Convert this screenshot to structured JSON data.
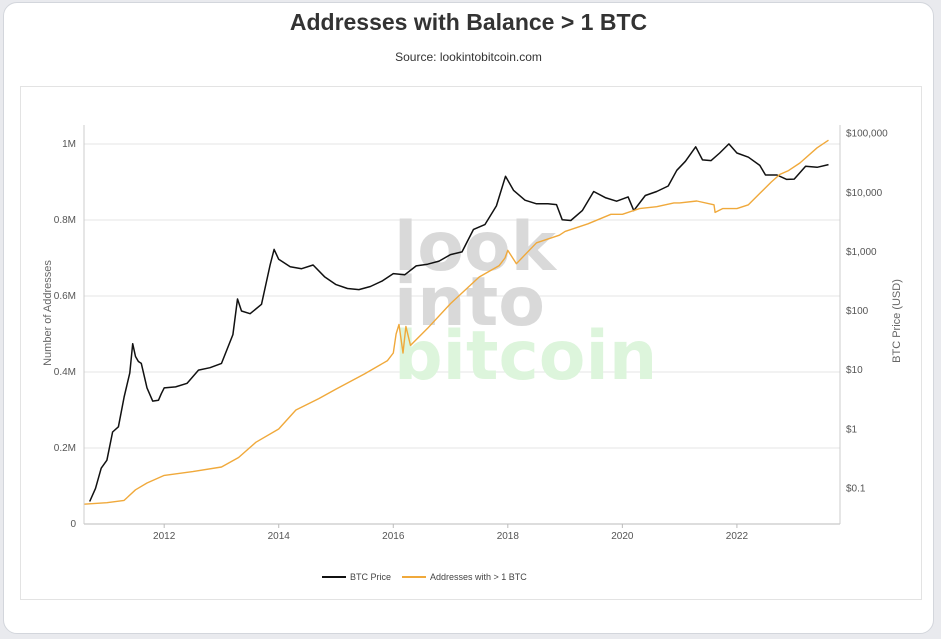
{
  "header": {
    "title": "Addresses with Balance > 1 BTC",
    "source": "Source: lookintobitcoin.com"
  },
  "watermark": {
    "line1": "look",
    "line2": "into",
    "line3": "bitcoin"
  },
  "colors": {
    "btc_price": "#111111",
    "addresses": "#f0a93b",
    "grid": "#e6e6e6",
    "watermark_gray": "#d9d9d9",
    "watermark_green": "#ddf5dc"
  },
  "chart_data": {
    "type": "line",
    "title": "Addresses with Balance > 1 BTC",
    "subtitle": "Source: lookintobitcoin.com",
    "ylabel_left": "Number of Addresses",
    "ylabel_right": "BTC Price (USD)",
    "x_ticks": [
      "2012",
      "2014",
      "2016",
      "2018",
      "2020",
      "2022"
    ],
    "xlim": [
      2010.6,
      2023.8
    ],
    "y_left_ticks": [
      {
        "v": 0,
        "label": "0"
      },
      {
        "v": 200000,
        "label": "0.2M"
      },
      {
        "v": 400000,
        "label": "0.4M"
      },
      {
        "v": 600000,
        "label": "0.6M"
      },
      {
        "v": 800000,
        "label": "0.8M"
      },
      {
        "v": 1000000,
        "label": "1M"
      }
    ],
    "y_left_lim": [
      0,
      1050000
    ],
    "y_right_scale": "log",
    "y_right_ticks": [
      {
        "v": 0.1,
        "label": "$0.1"
      },
      {
        "v": 1,
        "label": "$1"
      },
      {
        "v": 10,
        "label": "$10"
      },
      {
        "v": 100,
        "label": "$100"
      },
      {
        "v": 1000,
        "label": "$1,000"
      },
      {
        "v": 10000,
        "label": "$10,000"
      },
      {
        "v": 100000,
        "label": "$100,000"
      }
    ],
    "y_right_lim": [
      0.025,
      140000
    ],
    "grid": true,
    "legend_position": "bottom",
    "series": [
      {
        "name": "BTC Price",
        "axis": "right",
        "x": [
          2010.7,
          2010.8,
          2010.9,
          2011.0,
          2011.1,
          2011.2,
          2011.3,
          2011.4,
          2011.45,
          2011.5,
          2011.55,
          2011.6,
          2011.7,
          2011.8,
          2011.9,
          2011.95,
          2012.0,
          2012.2,
          2012.4,
          2012.6,
          2012.8,
          2013.0,
          2013.2,
          2013.28,
          2013.35,
          2013.5,
          2013.7,
          2013.85,
          2013.92,
          2014.0,
          2014.2,
          2014.4,
          2014.6,
          2014.8,
          2015.0,
          2015.2,
          2015.4,
          2015.6,
          2015.8,
          2016.0,
          2016.2,
          2016.4,
          2016.6,
          2016.8,
          2017.0,
          2017.2,
          2017.4,
          2017.6,
          2017.8,
          2017.96,
          2018.1,
          2018.3,
          2018.5,
          2018.7,
          2018.85,
          2018.95,
          2019.1,
          2019.3,
          2019.5,
          2019.7,
          2019.9,
          2020.1,
          2020.2,
          2020.4,
          2020.6,
          2020.8,
          2020.95,
          2021.1,
          2021.28,
          2021.4,
          2021.55,
          2021.7,
          2021.86,
          2022.0,
          2022.2,
          2022.4,
          2022.5,
          2022.7,
          2022.87,
          2023.0,
          2023.2,
          2023.4,
          2023.6
        ],
        "values": [
          0.06,
          0.1,
          0.22,
          0.3,
          0.9,
          1.1,
          3.5,
          9,
          28,
          17,
          14,
          13,
          5,
          3,
          3.1,
          4,
          5,
          5.2,
          6,
          10,
          11,
          13,
          40,
          160,
          100,
          90,
          130,
          600,
          1100,
          750,
          560,
          520,
          600,
          380,
          280,
          240,
          230,
          260,
          320,
          430,
          410,
          580,
          620,
          700,
          900,
          1000,
          2400,
          2900,
          6000,
          19000,
          11000,
          7500,
          6500,
          6500,
          6300,
          3500,
          3400,
          5000,
          10500,
          8300,
          7200,
          8500,
          5000,
          9000,
          10500,
          13000,
          24000,
          34000,
          60000,
          36000,
          35000,
          47000,
          67000,
          47000,
          40000,
          29000,
          20000,
          20000,
          16800,
          17000,
          28000,
          27000,
          30000
        ]
      },
      {
        "name": "Addresses with > 1 BTC",
        "axis": "left",
        "x": [
          2010.6,
          2011.0,
          2011.3,
          2011.5,
          2011.7,
          2012.0,
          2012.5,
          2013.0,
          2013.3,
          2013.6,
          2014.0,
          2014.3,
          2014.7,
          2015.0,
          2015.5,
          2015.9,
          2016.0,
          2016.05,
          2016.1,
          2016.17,
          2016.22,
          2016.3,
          2016.6,
          2017.0,
          2017.5,
          2017.85,
          2017.95,
          2018.0,
          2018.15,
          2018.5,
          2018.9,
          2019.0,
          2019.4,
          2019.8,
          2020.0,
          2020.3,
          2020.6,
          2020.9,
          2021.0,
          2021.3,
          2021.6,
          2021.62,
          2021.75,
          2022.0,
          2022.2,
          2022.4,
          2022.6,
          2022.75,
          2022.9,
          2023.1,
          2023.4,
          2023.6
        ],
        "values": [
          52000,
          56000,
          62000,
          90000,
          108000,
          128000,
          138000,
          150000,
          175000,
          215000,
          250000,
          300000,
          330000,
          355000,
          395000,
          430000,
          450000,
          500000,
          525000,
          450000,
          520000,
          470000,
          515000,
          580000,
          650000,
          680000,
          700000,
          720000,
          685000,
          740000,
          760000,
          770000,
          790000,
          815000,
          815000,
          830000,
          835000,
          845000,
          845000,
          850000,
          840000,
          820000,
          830000,
          830000,
          840000,
          870000,
          900000,
          920000,
          930000,
          950000,
          990000,
          1010000
        ]
      }
    ]
  }
}
